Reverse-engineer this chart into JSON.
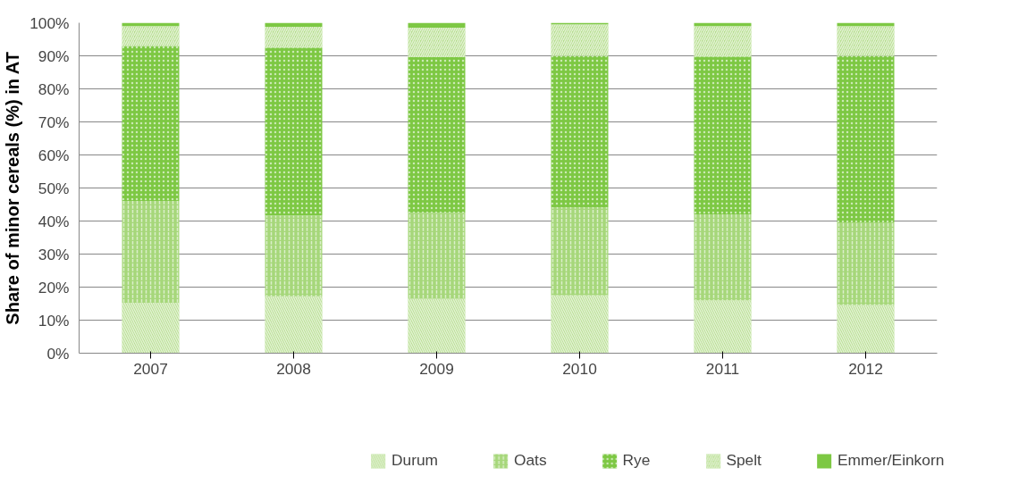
{
  "chart_data": {
    "type": "bar",
    "stacked": true,
    "ylabel": "Share of minor cereals (%) in AT",
    "categories": [
      "2007",
      "2008",
      "2009",
      "2010",
      "2011",
      "2012"
    ],
    "series": [
      {
        "name": "Durum",
        "color": "#b4dd8c",
        "values": [
          15.3,
          17.2,
          16.5,
          17.5,
          16,
          14.6
        ]
      },
      {
        "name": "Oats",
        "color": "#a6d77a",
        "values": [
          30.8,
          24.5,
          26,
          26.7,
          26,
          25
        ]
      },
      {
        "name": "Rye",
        "color": "#7dc843",
        "values": [
          46.9,
          50.8,
          47.1,
          45.8,
          47.8,
          50.4
        ]
      },
      {
        "name": "Spelt",
        "color": "#b4dd8c",
        "values": [
          6,
          6.3,
          8.9,
          9.5,
          9.2,
          9
        ]
      },
      {
        "name": "Emmer/Einkorn",
        "color": "#7dc843",
        "values": [
          1,
          1.2,
          1.5,
          0.5,
          1,
          1
        ]
      }
    ],
    "ylim": [
      0,
      100
    ],
    "yticks": [
      {
        "value": 0,
        "label": "0%"
      },
      {
        "value": 10,
        "label": "10%"
      },
      {
        "value": 20,
        "label": "20%"
      },
      {
        "value": 30,
        "label": "30%"
      },
      {
        "value": 40,
        "label": "40%"
      },
      {
        "value": 50,
        "label": "50%"
      },
      {
        "value": 60,
        "label": "60%"
      },
      {
        "value": 70,
        "label": "70%"
      },
      {
        "value": 80,
        "label": "80%"
      },
      {
        "value": 90,
        "label": "90%"
      },
      {
        "value": 100,
        "label": "100%"
      }
    ],
    "grid": "y",
    "legend": "bottom"
  }
}
